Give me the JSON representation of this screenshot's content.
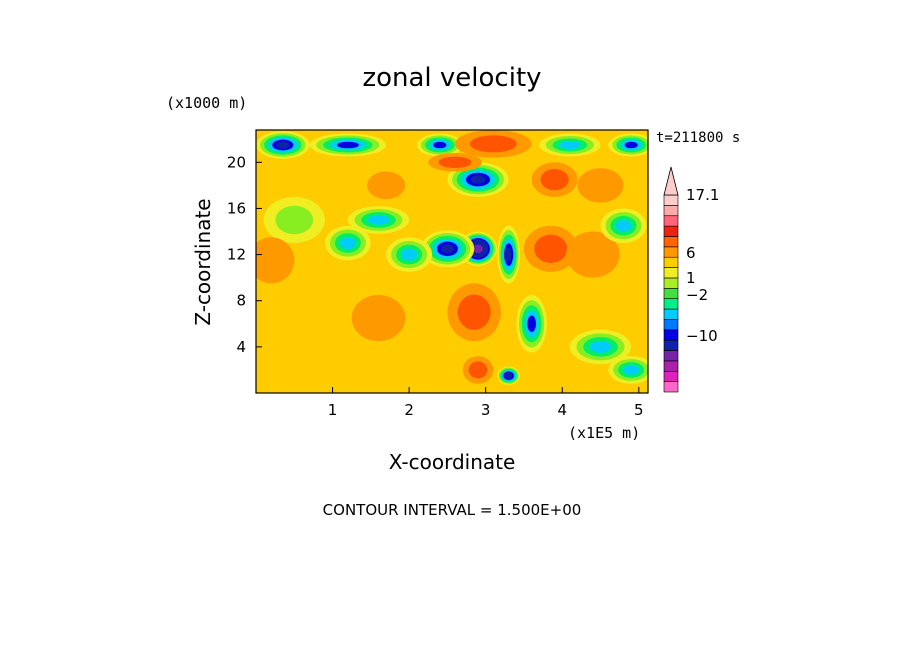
{
  "chart_data": {
    "type": "heatmap",
    "title": "zonal velocity",
    "xlabel": "X-coordinate",
    "ylabel": "Z-coordinate",
    "x_unit": "(x1E5 m)",
    "y_unit": "(x1000 m)",
    "time_label": "t=211800 s",
    "footer": "CONTOUR INTERVAL = 1.500E+00",
    "xlim": [
      0,
      5.12
    ],
    "ylim": [
      0,
      22.8
    ],
    "x_ticks": [
      1,
      2,
      3,
      4,
      5
    ],
    "y_ticks": [
      4,
      8,
      12,
      16,
      20
    ],
    "colorbar": {
      "labels": [
        {
          "value": 17.1,
          "text": "17.1"
        },
        {
          "value": 6,
          "text": "6"
        },
        {
          "value": 1,
          "text": "1"
        },
        {
          "value": -2,
          "text": "−2"
        },
        {
          "value": -10,
          "text": "−10"
        }
      ],
      "colors": [
        "#ff66cc",
        "#dd22bb",
        "#aa22aa",
        "#7722aa",
        "#1122aa",
        "#0000ee",
        "#0077ff",
        "#00ccff",
        "#00ee88",
        "#44dd44",
        "#aaee22",
        "#eeee22",
        "#ffcc00",
        "#ff9900",
        "#ff6600",
        "#ee2211",
        "#ff6677",
        "#ffaaaa",
        "#ffcccc"
      ]
    },
    "levels": [
      -2,
      -1,
      0,
      1,
      2,
      3,
      4,
      5
    ],
    "level_colors": [
      "#0000dd",
      "#00ccff",
      "#00ee66",
      "#88ee22",
      "#eeee22",
      "#ffcc00",
      "#ff9900",
      "#ff5500"
    ],
    "features": [
      {
        "x": 0.35,
        "z": 21.5,
        "sx": 0.35,
        "sz": 1.2,
        "value": -3
      },
      {
        "x": 1.2,
        "z": 21.5,
        "sx": 0.5,
        "sz": 1.0,
        "value": -2
      },
      {
        "x": 2.4,
        "z": 21.5,
        "sx": 0.3,
        "sz": 1.0,
        "value": -2
      },
      {
        "x": 3.1,
        "z": 21.6,
        "sx": 0.5,
        "sz": 1.2,
        "value": 5
      },
      {
        "x": 4.1,
        "z": 21.5,
        "sx": 0.4,
        "sz": 1.0,
        "value": -1
      },
      {
        "x": 4.9,
        "z": 21.5,
        "sx": 0.3,
        "sz": 1.0,
        "value": -2
      },
      {
        "x": 1.7,
        "z": 18.0,
        "sx": 0.25,
        "sz": 1.2,
        "value": 4
      },
      {
        "x": 0.4,
        "z": 18.5,
        "sx": 0.4,
        "sz": 1.2,
        "value": 3
      },
      {
        "x": 2.9,
        "z": 18.5,
        "sx": 0.4,
        "sz": 1.5,
        "value": -3
      },
      {
        "x": 2.6,
        "z": 20.0,
        "sx": 0.35,
        "sz": 0.8,
        "value": 5
      },
      {
        "x": 3.9,
        "z": 18.5,
        "sx": 0.3,
        "sz": 1.5,
        "value": 5
      },
      {
        "x": 4.5,
        "z": 18.0,
        "sx": 0.3,
        "sz": 1.5,
        "value": 4
      },
      {
        "x": 0.5,
        "z": 15.0,
        "sx": 0.4,
        "sz": 2.0,
        "value": 1
      },
      {
        "x": 1.6,
        "z": 15.0,
        "sx": 0.4,
        "sz": 1.2,
        "value": -1
      },
      {
        "x": 2.9,
        "z": 12.5,
        "sx": 0.25,
        "sz": 1.5,
        "value": -7
      },
      {
        "x": 2.5,
        "z": 12.5,
        "sx": 0.35,
        "sz": 1.6,
        "value": -3
      },
      {
        "x": 3.3,
        "z": 12.0,
        "sx": 0.15,
        "sz": 2.5,
        "value": -3
      },
      {
        "x": 2.0,
        "z": 12.0,
        "sx": 0.3,
        "sz": 1.5,
        "value": -1
      },
      {
        "x": 1.2,
        "z": 13.0,
        "sx": 0.3,
        "sz": 1.5,
        "value": -1
      },
      {
        "x": 0.2,
        "z": 11.5,
        "sx": 0.3,
        "sz": 2.0,
        "value": 4
      },
      {
        "x": 3.85,
        "z": 12.5,
        "sx": 0.35,
        "sz": 2.0,
        "value": 5
      },
      {
        "x": 4.4,
        "z": 12.0,
        "sx": 0.35,
        "sz": 2.0,
        "value": 4
      },
      {
        "x": 4.8,
        "z": 14.5,
        "sx": 0.3,
        "sz": 1.5,
        "value": -1
      },
      {
        "x": 2.85,
        "z": 7.0,
        "sx": 0.35,
        "sz": 2.5,
        "value": 5
      },
      {
        "x": 3.6,
        "z": 6.0,
        "sx": 0.2,
        "sz": 2.5,
        "value": -2
      },
      {
        "x": 4.5,
        "z": 4.0,
        "sx": 0.4,
        "sz": 1.5,
        "value": -1
      },
      {
        "x": 1.6,
        "z": 6.5,
        "sx": 0.35,
        "sz": 2.0,
        "value": 4
      },
      {
        "x": 0.6,
        "z": 4.5,
        "sx": 0.35,
        "sz": 2.0,
        "value": 3
      },
      {
        "x": 1.2,
        "z": 2.0,
        "sx": 0.4,
        "sz": 1.5,
        "value": 3
      },
      {
        "x": 3.3,
        "z": 1.5,
        "sx": 0.15,
        "sz": 0.8,
        "value": -4
      },
      {
        "x": 2.9,
        "z": 2.0,
        "sx": 0.2,
        "sz": 1.2,
        "value": 5
      },
      {
        "x": 4.9,
        "z": 2.0,
        "sx": 0.3,
        "sz": 1.2,
        "value": -1
      }
    ]
  }
}
